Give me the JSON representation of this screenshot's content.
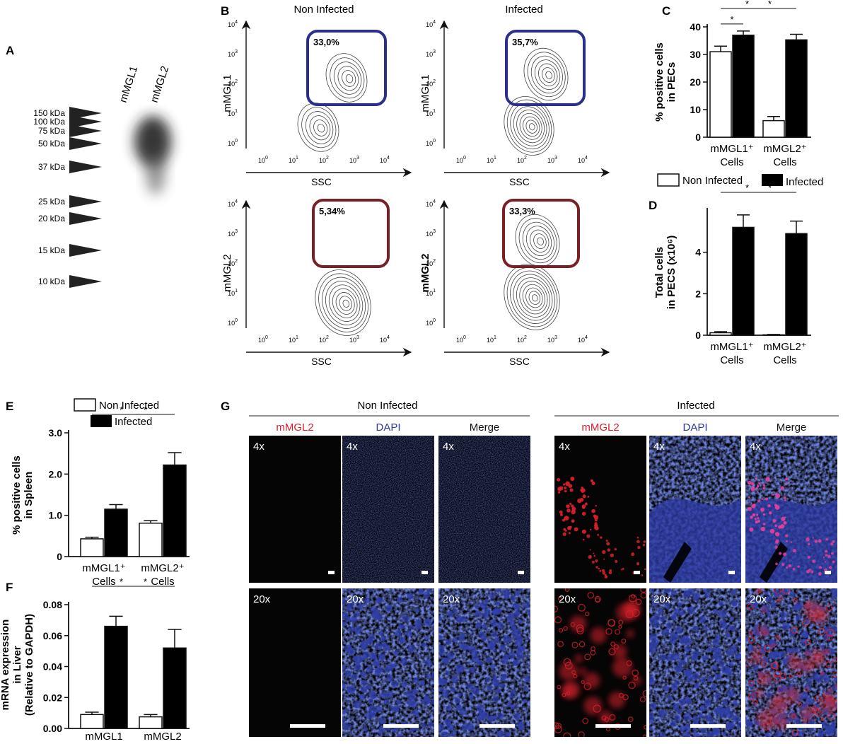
{
  "colors": {
    "axis": "#111111",
    "gate_blue": "#2b2f8c",
    "gate_red": "#7a1f24",
    "bar_infected": "#000000",
    "bar_noninfected": "#ffffff",
    "mic_black": "#050505",
    "mic_blue": "#2b3a9e",
    "mic_red": "#d8202a",
    "mic_label_red": "#d8202a",
    "mic_label_blue": "#2b3a9e"
  },
  "panel_a": {
    "letter": "A",
    "lanes": [
      "mMGL1",
      "mMGL2"
    ],
    "markers": [
      "150 kDa",
      "100 kDa",
      "75 kDa",
      "50 kDa",
      "37 kDa",
      "25 kDa",
      "20 kDa",
      "15 kDa",
      "10 kDa"
    ]
  },
  "panel_b": {
    "letter": "B",
    "col_titles": [
      "Non Infected",
      "Infected"
    ],
    "x_label": "SSC",
    "tick_labels": [
      "10",
      "10",
      "10",
      "10",
      "10"
    ],
    "tick_exps": [
      "0",
      "1",
      "2",
      "3",
      "4"
    ],
    "plots": [
      {
        "ylabel": "mMGL1",
        "gate_pct": "33,0%",
        "gate": "blue"
      },
      {
        "ylabel": "mMGL1",
        "gate_pct": "35,7%",
        "gate": "blue"
      },
      {
        "ylabel": "mMGL2",
        "gate_pct": "5,34%",
        "gate": "red"
      },
      {
        "ylabel": "mMGL2",
        "gate_pct": "33,3%",
        "gate": "red"
      }
    ]
  },
  "panel_c": {
    "letter": "C"
  },
  "panel_d": {
    "letter": "D"
  },
  "panel_e": {
    "letter": "E"
  },
  "panel_f": {
    "letter": "F"
  },
  "panel_g": {
    "letter": "G",
    "groups": [
      "Non Infected",
      "Infected"
    ],
    "channels": [
      "mMGL2",
      "DAPI",
      "Merge"
    ],
    "rows": [
      "4x",
      "20x"
    ]
  },
  "legend": {
    "non_infected": "Non Infected",
    "infected": "Infected"
  },
  "sig_star": "*",
  "chart_data": [
    {
      "panel": "C",
      "type": "bar",
      "categories": [
        "mMGL1⁺ Cells",
        "mMGL2⁺ Cells"
      ],
      "category_lines": [
        [
          "mMGL1⁺",
          "Cells"
        ],
        [
          "mMGL2⁺",
          "Cells"
        ]
      ],
      "series": [
        {
          "name": "Non Infected",
          "values": [
            31,
            6
          ],
          "errors": [
            2,
            1.5
          ]
        },
        {
          "name": "Infected",
          "values": [
            37,
            35.3
          ],
          "errors": [
            1.5,
            2
          ]
        }
      ],
      "ylabel_lines": [
        "% positive cells",
        "in PECs"
      ],
      "ylim": [
        0,
        40
      ],
      "yticks": [
        0,
        10,
        20,
        30,
        40
      ],
      "ytick_labels": [
        "0",
        "10",
        "20",
        "30",
        "40"
      ],
      "significance": [
        [
          0,
          0,
          0,
          1
        ],
        [
          1,
          0,
          1,
          1
        ],
        [
          0,
          0,
          1,
          0
        ]
      ]
    },
    {
      "panel": "D",
      "type": "bar",
      "categories": [
        "mMGL1⁺ Cells",
        "mMGL2⁺ Cells"
      ],
      "category_lines": [
        [
          "mMGL1⁺",
          "Cells"
        ],
        [
          "mMGL2⁺",
          "Cells"
        ]
      ],
      "series": [
        {
          "name": "Non Infected",
          "values": [
            0.12,
            0.02
          ],
          "errors": [
            0.05,
            0.02
          ]
        },
        {
          "name": "Infected",
          "values": [
            5.2,
            4.9
          ],
          "errors": [
            0.6,
            0.6
          ]
        }
      ],
      "ylabel_lines": [
        "Total cells",
        "in PECS (x10⁶)"
      ],
      "ylim": [
        0,
        6
      ],
      "yticks": [
        0,
        2,
        4
      ],
      "ytick_labels": [
        "0",
        "2",
        "4"
      ],
      "significance": [
        [
          0,
          0,
          0,
          1
        ],
        [
          1,
          0,
          1,
          1
        ]
      ]
    },
    {
      "panel": "E",
      "type": "bar",
      "categories": [
        "mMGL1⁺ Cells",
        "mMGL2⁺ Cells"
      ],
      "category_lines": [
        [
          "mMGL1⁺",
          "Cells"
        ],
        [
          "mMGL2⁺",
          "Cells"
        ]
      ],
      "series": [
        {
          "name": "Non Infected",
          "values": [
            0.43,
            0.81
          ],
          "errors": [
            0.04,
            0.06
          ]
        },
        {
          "name": "Infected",
          "values": [
            1.15,
            2.22
          ],
          "errors": [
            0.11,
            0.3
          ]
        }
      ],
      "ylabel_lines": [
        "% positive cells",
        "in Spleen"
      ],
      "ylim": [
        0,
        3.0
      ],
      "yticks": [
        0,
        1.0,
        2.0,
        3.0
      ],
      "ytick_labels": [
        "0",
        "1.0",
        "2.0",
        "3.0"
      ],
      "significance": [
        [
          0,
          0,
          0,
          1
        ],
        [
          1,
          0,
          1,
          1
        ]
      ]
    },
    {
      "panel": "F",
      "type": "bar",
      "categories": [
        "mMGL1",
        "mMGL2"
      ],
      "category_lines": [
        [
          "mMGL1"
        ],
        [
          "mMGL2"
        ]
      ],
      "series": [
        {
          "name": "Non Infected",
          "values": [
            0.009,
            0.0075
          ],
          "errors": [
            0.0015,
            0.0015
          ]
        },
        {
          "name": "Infected",
          "values": [
            0.066,
            0.052
          ],
          "errors": [
            0.0065,
            0.012
          ]
        }
      ],
      "ylabel_lines": [
        "mRNA expression",
        "in Liver",
        "(Relative to GAPDH)"
      ],
      "ylim": [
        0,
        0.08
      ],
      "yticks": [
        0,
        0.02,
        0.04,
        0.06,
        0.08
      ],
      "ytick_labels": [
        "0.00",
        "0.02",
        "0.04",
        "0.06",
        "0.08"
      ],
      "significance": [
        [
          0,
          0,
          0,
          1
        ],
        [
          1,
          0,
          1,
          1
        ]
      ]
    }
  ]
}
